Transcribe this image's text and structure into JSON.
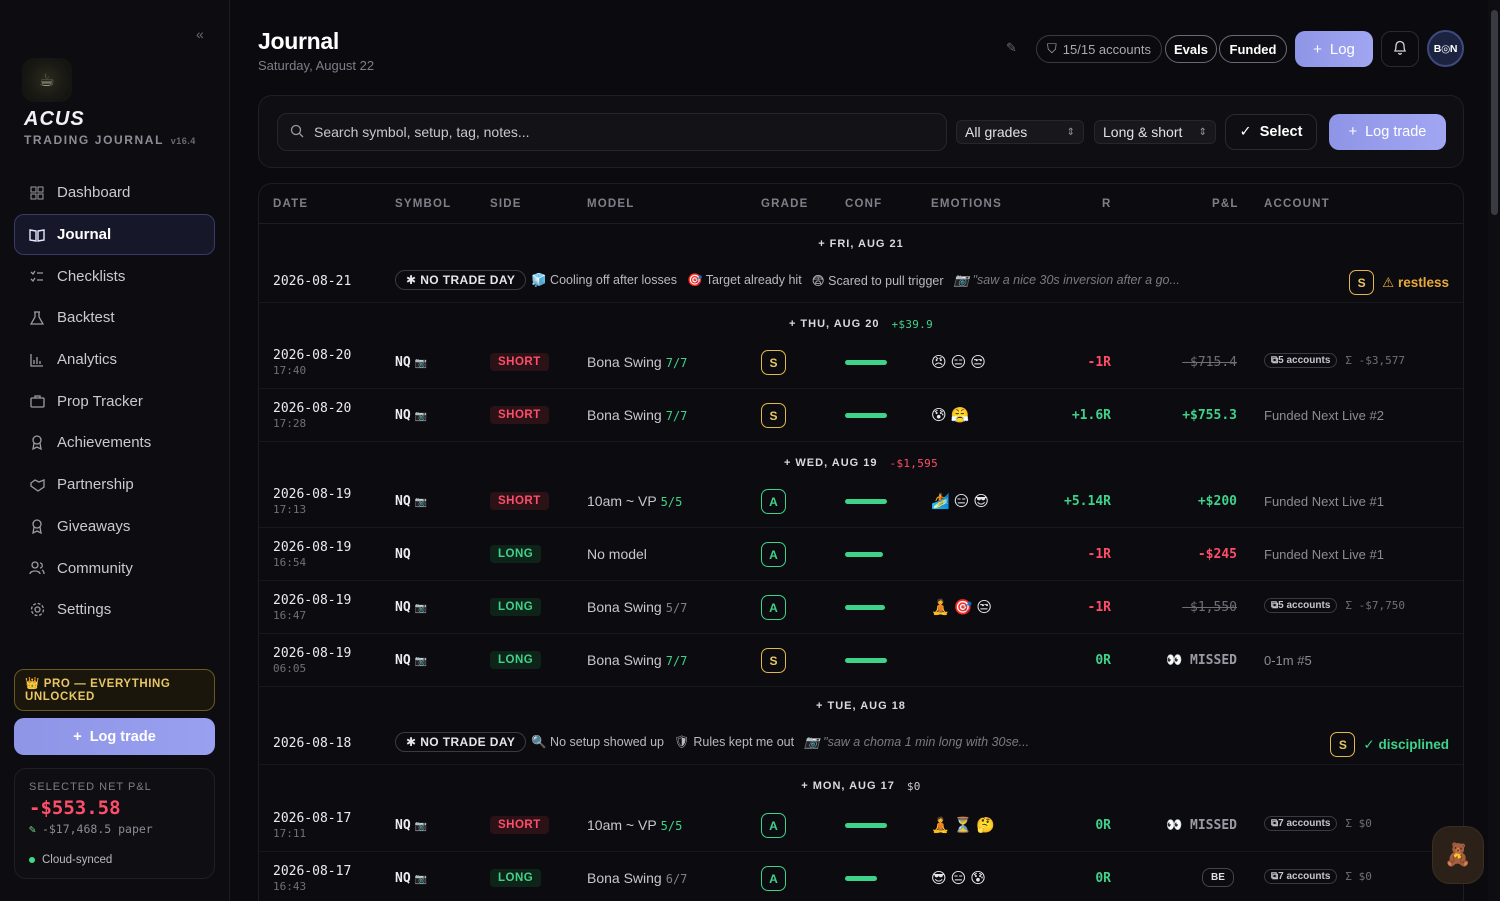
{
  "sidebar": {
    "brand": "ACUS",
    "subtitle": "TRADING JOURNAL",
    "version": "v16.4",
    "items": [
      {
        "label": "Dashboard",
        "icon": "grid-icon"
      },
      {
        "label": "Journal",
        "icon": "book-icon"
      },
      {
        "label": "Checklists",
        "icon": "checklist-icon"
      },
      {
        "label": "Backtest",
        "icon": "flask-icon"
      },
      {
        "label": "Analytics",
        "icon": "bar-chart-icon"
      },
      {
        "label": "Prop Tracker",
        "icon": "briefcase-icon"
      },
      {
        "label": "Achievements",
        "icon": "medal-icon"
      },
      {
        "label": "Partnership",
        "icon": "handshake-icon"
      },
      {
        "label": "Giveaways",
        "icon": "gift-icon"
      },
      {
        "label": "Community",
        "icon": "users-icon"
      },
      {
        "label": "Settings",
        "icon": "gear-icon"
      }
    ],
    "pro_badge": "PRO — EVERYTHING UNLOCKED",
    "log_trade": "Log trade",
    "pnl_label": "SELECTED NET P&L",
    "pnl_value": "-$553.58",
    "pnl_paper": "-$17,468.5 paper",
    "sync": "Cloud-synced"
  },
  "header": {
    "title": "Journal",
    "date": "Saturday, August 22",
    "accounts": "15/15 accounts",
    "evals": "Evals",
    "funded": "Funded",
    "log": "Log",
    "avatar": "B◎N"
  },
  "filters": {
    "search_placeholder": "Search symbol, setup, tag, notes...",
    "grades": "All grades",
    "sides": "Long & short",
    "select": "Select",
    "log_trade": "Log trade"
  },
  "columns": [
    "DATE",
    "SYMBOL",
    "SIDE",
    "MODEL",
    "GRADE",
    "CONF",
    "EMOTIONS",
    "R",
    "P&L",
    "ACCOUNT"
  ],
  "days": [
    {
      "label": "FRI, AUG 21",
      "sum": ""
    },
    {
      "label": "THU, AUG 20",
      "sum": "+$39.9"
    },
    {
      "label": "WED, AUG 19",
      "sum": "-$1,595"
    },
    {
      "label": "TUE, AUG 18",
      "sum": ""
    },
    {
      "label": "MON, AUG 17",
      "sum": "$0"
    }
  ],
  "no_trade_days": [
    {
      "date": "2026-08-21",
      "pill": "NO TRADE DAY",
      "tags": [
        "🧊 Cooling off after losses",
        "🎯 Target already hit",
        "😨 Scared to pull trigger"
      ],
      "note": "\"saw a nice 30s inversion after a go...",
      "grade": "S",
      "mood": "⚠ restless"
    },
    {
      "date": "2026-08-18",
      "pill": "NO TRADE DAY",
      "tags": [
        "🔍 No setup showed up",
        "🛡 Rules kept me out"
      ],
      "note": "\"saw a choma 1 min long with 30se...",
      "grade": "S",
      "mood": "✓ disciplined"
    }
  ],
  "trades": [
    {
      "date": "2026-08-20",
      "time": "17:40",
      "symbol": "NQ",
      "side": "SHORT",
      "model": "Bona Swing",
      "count": "7/7",
      "grade": "S",
      "emotions": "😠😑😒",
      "r": "-1R",
      "pnl": "-$715.4",
      "account": "5 accounts",
      "sum": "Σ -$3,577"
    },
    {
      "date": "2026-08-20",
      "time": "17:28",
      "symbol": "NQ",
      "side": "SHORT",
      "model": "Bona Swing",
      "count": "7/7",
      "grade": "S",
      "emotions": "😰😤",
      "r": "+1.6R",
      "pnl": "+$755.3",
      "account": "Funded Next Live #2"
    },
    {
      "date": "2026-08-19",
      "time": "17:13",
      "symbol": "NQ",
      "side": "SHORT",
      "model": "10am ~ VP",
      "count": "5/5",
      "grade": "A",
      "emotions": "🏄😑😎",
      "r": "+5.14R",
      "pnl": "+$200",
      "account": "Funded Next Live #1"
    },
    {
      "date": "2026-08-19",
      "time": "16:54",
      "symbol": "NQ",
      "side": "LONG",
      "model": "No model",
      "count": "",
      "grade": "A",
      "emotions": "",
      "r": "-1R",
      "pnl": "-$245",
      "account": "Funded Next Live #1"
    },
    {
      "date": "2026-08-19",
      "time": "16:47",
      "symbol": "NQ",
      "side": "LONG",
      "model": "Bona Swing",
      "count": "5/7",
      "grade": "A",
      "emotions": "🧘🎯😒",
      "r": "-1R",
      "pnl": "-$1,550",
      "account": "5 accounts",
      "sum": "Σ -$7,750"
    },
    {
      "date": "2026-08-19",
      "time": "06:05",
      "symbol": "NQ",
      "side": "LONG",
      "model": "Bona Swing",
      "count": "7/7",
      "grade": "S",
      "emotions": "",
      "r": "0R",
      "pnl": "👀 MISSED",
      "account": "0-1m #5"
    },
    {
      "date": "2026-08-17",
      "time": "17:11",
      "symbol": "NQ",
      "side": "SHORT",
      "model": "10am ~ VP",
      "count": "5/5",
      "grade": "A",
      "emotions": "🧘⏳🤔",
      "r": "0R",
      "pnl": "👀 MISSED",
      "account": "7 accounts",
      "sum": "Σ $0"
    },
    {
      "date": "2026-08-17",
      "time": "16:43",
      "symbol": "NQ",
      "side": "LONG",
      "model": "Bona Swing",
      "count": "6/7",
      "grade": "A",
      "emotions": "😎😑😰",
      "r": "0R",
      "pnl": "BE",
      "account": "7 accounts",
      "sum": "Σ $0"
    }
  ]
}
